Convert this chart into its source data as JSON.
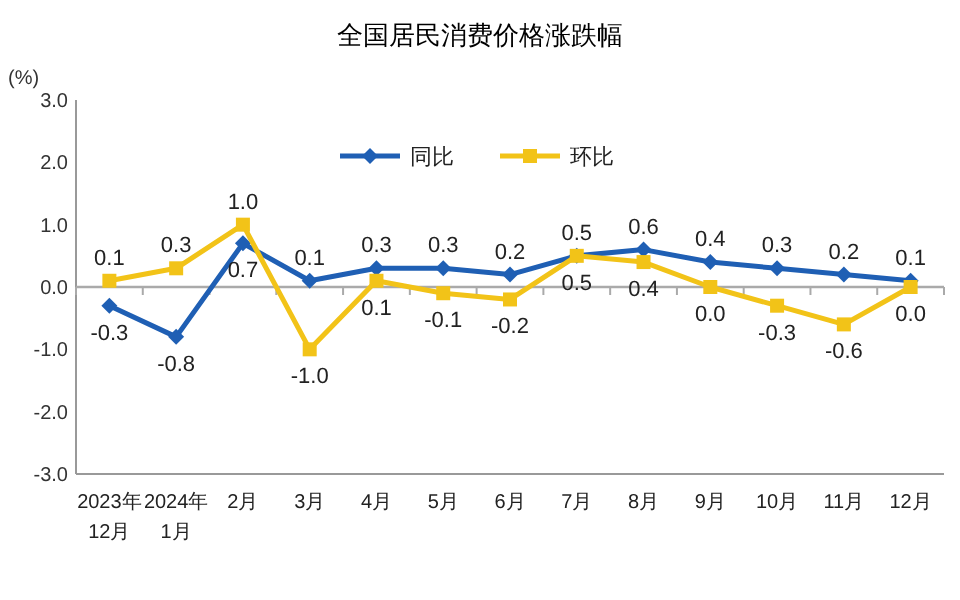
{
  "chart_data": {
    "type": "line",
    "title": "全国居民消费价格涨跌幅",
    "ylabel": "(%)",
    "categories": [
      "2023年\n12月",
      "2024年\n1月",
      "2月",
      "3月",
      "4月",
      "5月",
      "6月",
      "7月",
      "8月",
      "9月",
      "10月",
      "11月",
      "12月"
    ],
    "series": [
      {
        "name": "同比",
        "color": "#1f5fb4",
        "marker": "diamond",
        "values": [
          -0.3,
          -0.8,
          0.7,
          0.1,
          0.3,
          0.3,
          0.2,
          0.5,
          0.6,
          0.4,
          0.3,
          0.2,
          0.1
        ],
        "value_labels": [
          "-0.3",
          "-0.8",
          "0.7",
          "0.1",
          "0.3",
          "0.3",
          "0.2",
          "0.5",
          "0.6",
          "0.4",
          "0.3",
          "0.2",
          "0.1"
        ]
      },
      {
        "name": "环比",
        "color": "#f2c318",
        "marker": "square",
        "values": [
          0.1,
          0.3,
          1.0,
          -1.0,
          0.1,
          -0.1,
          -0.2,
          0.5,
          0.4,
          0.0,
          -0.3,
          -0.6,
          0.0
        ],
        "value_labels": [
          "0.1",
          "0.3",
          "1.0",
          "-1.0",
          "0.1",
          "-0.1",
          "-0.2",
          "0.5",
          "0.4",
          "0.0",
          "-0.3",
          "-0.6",
          "0.0"
        ]
      }
    ],
    "ylim": [
      -3,
      3
    ],
    "yticks": [
      {
        "value": 3,
        "label": "3.0"
      },
      {
        "value": 2,
        "label": "2.0"
      },
      {
        "value": 1,
        "label": "1.0"
      },
      {
        "value": 0,
        "label": "0.0"
      },
      {
        "value": -1,
        "label": "-1.0"
      },
      {
        "value": -2,
        "label": "-2.0"
      },
      {
        "value": -3,
        "label": "-3.0"
      }
    ],
    "legend": "top"
  }
}
